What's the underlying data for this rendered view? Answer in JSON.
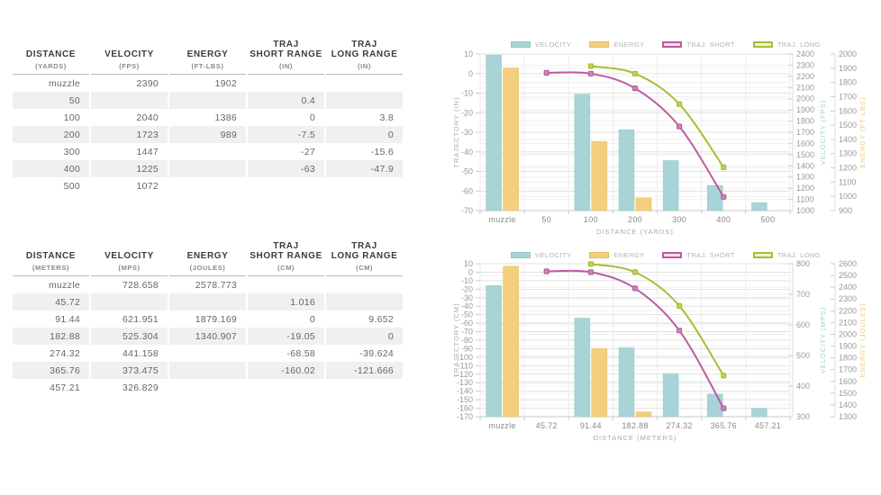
{
  "colors": {
    "grid_minor": "#f0f0f0",
    "grid_major": "#e2e2e2",
    "axis_line": "#c9c9c9",
    "tick_dash": "#cccccc",
    "tick_text": "#999999",
    "x_label_text": "#8a8a8a",
    "axis_title_gray": "#aaaaaa"
  },
  "tables": [
    {
      "name": "imperial",
      "columns": [
        {
          "label": "DISTANCE",
          "unit": "(YARDS)"
        },
        {
          "label": "VELOCITY",
          "unit": "(FPS)"
        },
        {
          "label": "ENERGY",
          "unit": "(FT-LBS)"
        },
        {
          "label": "TRAJ\nSHORT RANGE",
          "unit": "(IN)"
        },
        {
          "label": "TRAJ\nLONG RANGE",
          "unit": "(IN)"
        }
      ],
      "rows": [
        [
          "muzzle",
          "2390",
          "1902",
          "",
          ""
        ],
        [
          "50",
          "",
          "",
          "0.4",
          ""
        ],
        [
          "100",
          "2040",
          "1386",
          "0",
          "3.8"
        ],
        [
          "200",
          "1723",
          "989",
          "-7.5",
          "0"
        ],
        [
          "300",
          "1447",
          "",
          "-27",
          "-15.6"
        ],
        [
          "400",
          "1225",
          "",
          "-63",
          "-47.9"
        ],
        [
          "500",
          "1072",
          "",
          "",
          ""
        ]
      ]
    },
    {
      "name": "metric",
      "columns": [
        {
          "label": "DISTANCE",
          "unit": "(METERS)"
        },
        {
          "label": "VELOCITY",
          "unit": "(MPS)"
        },
        {
          "label": "ENERGY",
          "unit": "(JOULES)"
        },
        {
          "label": "TRAJ\nSHORT RANGE",
          "unit": "(CM)"
        },
        {
          "label": "TRAJ\nLONG RANGE",
          "unit": "(CM)"
        }
      ],
      "rows": [
        [
          "muzzle",
          "728.658",
          "2578.773",
          "",
          ""
        ],
        [
          "45.72",
          "",
          "",
          "1.016",
          ""
        ],
        [
          "91.44",
          "621.951",
          "1879.169",
          "0",
          "9.652"
        ],
        [
          "182.88",
          "525.304",
          "1340.907",
          "-19.05",
          "0"
        ],
        [
          "274.32",
          "441.158",
          "",
          "-68.58",
          "-39.624"
        ],
        [
          "365.76",
          "373.475",
          "",
          "-160.02",
          "-121.666"
        ],
        [
          "457.21",
          "326.829",
          "",
          "",
          ""
        ]
      ]
    }
  ],
  "chart_data": [
    {
      "type": "bar+line",
      "title": "",
      "categories": [
        "muzzle",
        "50",
        "100",
        "200",
        "300",
        "400",
        "500"
      ],
      "xlabel": "DISTANCE (YARDS)",
      "legend_position": "top",
      "grid": true,
      "axes": {
        "trajectory": {
          "title": "TRAJECTORY (IN)",
          "max": 10,
          "min": -70,
          "step": 10,
          "side": "left",
          "title_color": "#aaaaaa"
        },
        "velocity": {
          "title": "VELOCITY (FPS)",
          "max": 2400,
          "min": 1000,
          "step": 100,
          "side": "right",
          "title_color": "#9fd0d4"
        },
        "energy": {
          "title": "ENERGY (FT-LBS)",
          "max": 2000,
          "min": 900,
          "step": 100,
          "side": "right",
          "title_color": "#eecb7d"
        }
      },
      "series": [
        {
          "name": "VELOCITY",
          "kind": "bar",
          "axis": "velocity",
          "color": "#a9d4d7",
          "border": "#97c7cb",
          "values": [
            2390,
            null,
            2040,
            1723,
            1447,
            1225,
            1072
          ]
        },
        {
          "name": "ENERGY",
          "kind": "bar",
          "axis": "energy",
          "color": "#f3d07e",
          "border": "#e2bc60",
          "values": [
            1902,
            null,
            1386,
            989,
            null,
            null,
            null
          ]
        },
        {
          "name": "TRAJ. SHORT",
          "kind": "line",
          "axis": "trajectory",
          "color": "#bb5ca1",
          "marker_fill": "#cd86ba",
          "legend_fill": "#f2e2ec",
          "values": [
            null,
            0.4,
            0,
            -7.5,
            -27,
            -63,
            null
          ]
        },
        {
          "name": "TRAJ. LONG",
          "kind": "line",
          "axis": "trajectory",
          "color": "#a9bd34",
          "marker_fill": "#c3cf52",
          "legend_fill": "#eef2d6",
          "values": [
            null,
            null,
            3.8,
            0,
            -15.6,
            -47.9,
            null
          ]
        }
      ]
    },
    {
      "type": "bar+line",
      "title": "",
      "categories": [
        "muzzle",
        "45.72",
        "91.44",
        "182.88",
        "274.32",
        "365.76",
        "457.21"
      ],
      "xlabel": "DISTANCE (METERS)",
      "legend_position": "top",
      "grid": true,
      "axes": {
        "trajectory": {
          "title": "TRAJECTORY (CM)",
          "max": 10,
          "min": -170,
          "step": 10,
          "side": "left",
          "title_color": "#aaaaaa"
        },
        "velocity": {
          "title": "VELOCITY (MPS)",
          "max": 800,
          "min": 300,
          "step": 100,
          "side": "right",
          "title_color": "#9fd0d4"
        },
        "energy": {
          "title": "ENERGY (JOULES)",
          "max": 2600,
          "min": 1300,
          "step": 100,
          "side": "right",
          "title_color": "#eecb7d"
        }
      },
      "series": [
        {
          "name": "VELOCITY",
          "kind": "bar",
          "axis": "velocity",
          "color": "#a9d4d7",
          "border": "#97c7cb",
          "values": [
            728.658,
            null,
            621.951,
            525.304,
            441.158,
            373.475,
            326.829
          ]
        },
        {
          "name": "ENERGY",
          "kind": "bar",
          "axis": "energy",
          "color": "#f3d07e",
          "border": "#e2bc60",
          "values": [
            2578.773,
            null,
            1879.169,
            1340.907,
            null,
            null,
            null
          ]
        },
        {
          "name": "TRAJ. SHORT",
          "kind": "line",
          "axis": "trajectory",
          "color": "#bb5ca1",
          "marker_fill": "#cd86ba",
          "legend_fill": "#f2e2ec",
          "values": [
            null,
            1.016,
            0,
            -19.05,
            -68.58,
            -160.02,
            null
          ]
        },
        {
          "name": "TRAJ. LONG",
          "kind": "line",
          "axis": "trajectory",
          "color": "#a9bd34",
          "marker_fill": "#c3cf52",
          "legend_fill": "#eef2d6",
          "values": [
            null,
            null,
            9.652,
            0,
            -39.624,
            -121.666,
            null
          ]
        }
      ]
    }
  ]
}
